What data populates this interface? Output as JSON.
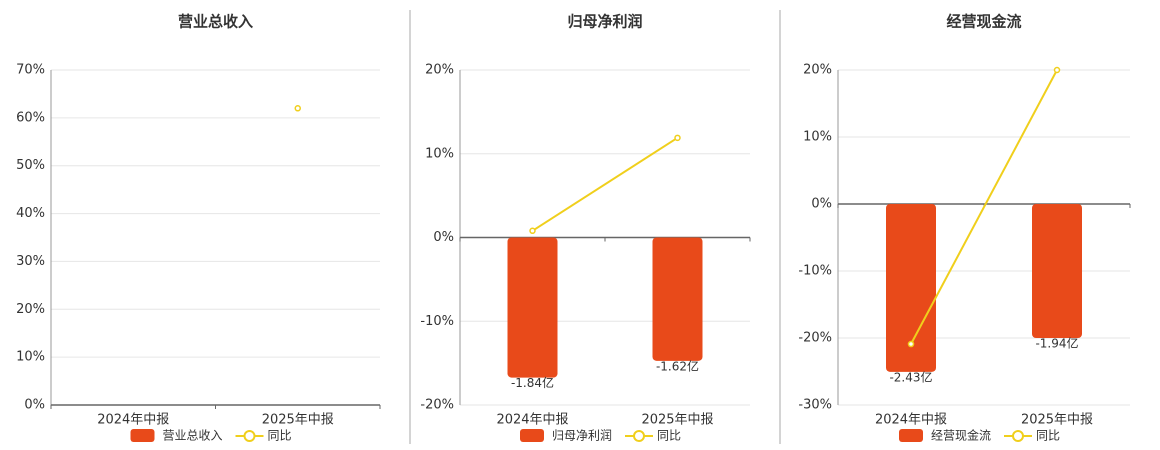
{
  "chart_data": [
    {
      "type": "bar-line",
      "title": "营业总收入",
      "categories": [
        "2024年中报",
        "2025年中报"
      ],
      "series": [
        {
          "name": "营业总收入",
          "color": "#e84a1a",
          "values": [
            null,
            null
          ],
          "axis": "y2"
        },
        {
          "name": "同比",
          "color": "#f0cf1c",
          "values": [
            null,
            62
          ]
        }
      ],
      "ylim": [
        0,
        70
      ],
      "yticks": [
        {
          "value": 0,
          "label": "0%"
        },
        {
          "value": 10,
          "label": "10%"
        },
        {
          "value": 20,
          "label": "20%"
        },
        {
          "value": 30,
          "label": "30%"
        },
        {
          "value": 40,
          "label": "40%"
        },
        {
          "value": 50,
          "label": "50%"
        },
        {
          "value": 60,
          "label": "60%"
        },
        {
          "value": 70,
          "label": "70%"
        }
      ],
      "grid": true
    },
    {
      "type": "bar-line",
      "title": "归母净利润",
      "categories": [
        "2024年中报",
        "2025年中报"
      ],
      "series": [
        {
          "name": "归母净利润",
          "color": "#e84a1a",
          "values": [
            -1.84,
            -1.62
          ],
          "value_labels": [
            "-1.84亿",
            "-1.62亿"
          ],
          "axis": "y2"
        },
        {
          "name": "同比",
          "color": "#f0cf1c",
          "values": [
            0.8,
            11.9
          ]
        }
      ],
      "ylim": [
        -20,
        20
      ],
      "yticks": [
        {
          "value": -20,
          "label": "-20%"
        },
        {
          "value": -10,
          "label": "-10%"
        },
        {
          "value": 0,
          "label": "0%"
        },
        {
          "value": 10,
          "label": "10%"
        },
        {
          "value": 20,
          "label": "20%"
        }
      ],
      "y2lim": [
        -2.2,
        2.2
      ],
      "grid": true
    },
    {
      "type": "bar-line",
      "title": "经营现金流",
      "categories": [
        "2024年中报",
        "2025年中报"
      ],
      "series": [
        {
          "name": "经营现金流",
          "color": "#e84a1a",
          "values": [
            -2.43,
            -1.94
          ],
          "value_labels": [
            "-2.43亿",
            "-1.94亿"
          ],
          "axis": "y2"
        },
        {
          "name": "同比",
          "color": "#f0cf1c",
          "values": [
            -20.9,
            20.0
          ]
        }
      ],
      "ylim": [
        -30,
        20
      ],
      "yticks": [
        {
          "value": -30,
          "label": "-30%"
        },
        {
          "value": -20,
          "label": "-20%"
        },
        {
          "value": -10,
          "label": "-10%"
        },
        {
          "value": 0,
          "label": "0%"
        },
        {
          "value": 10,
          "label": "10%"
        },
        {
          "value": 20,
          "label": "20%"
        }
      ],
      "y2lim": [
        -2.91,
        1.94
      ],
      "grid": true
    }
  ]
}
